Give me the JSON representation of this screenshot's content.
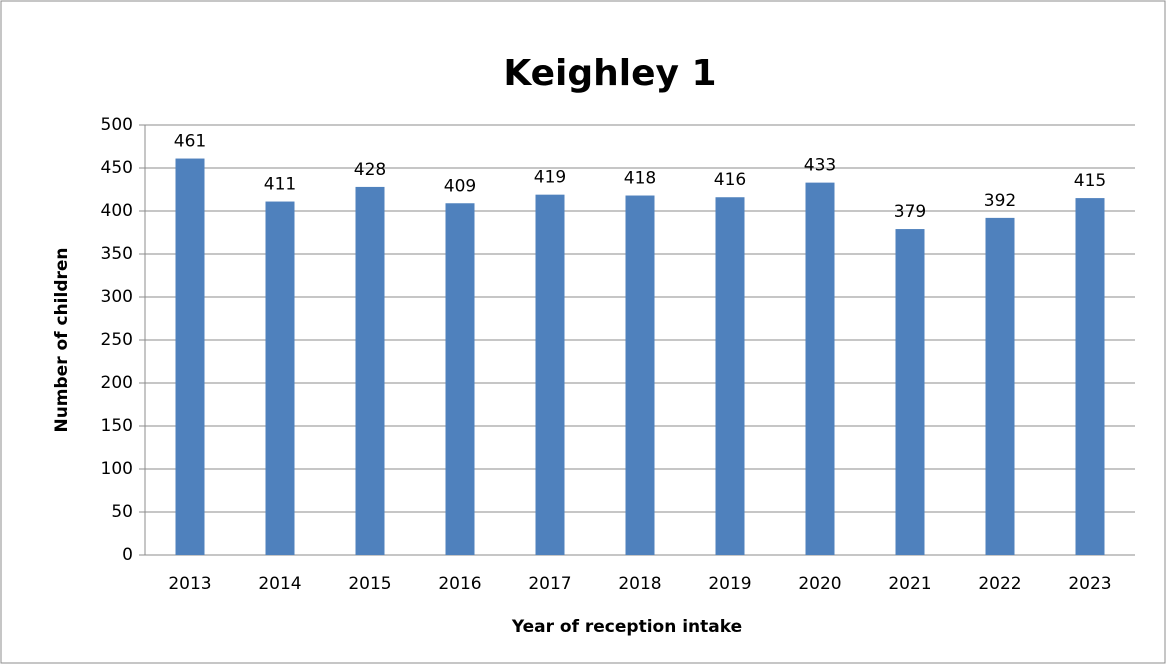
{
  "chart_data": {
    "type": "bar",
    "title": "Keighley 1",
    "x_label": "Year of reception intake",
    "y_label": "Number of children",
    "categories": [
      "2013",
      "2014",
      "2015",
      "2016",
      "2017",
      "2018",
      "2019",
      "2020",
      "2021",
      "2022",
      "2023"
    ],
    "values": [
      461,
      411,
      428,
      409,
      419,
      418,
      416,
      433,
      379,
      392,
      415
    ],
    "color": "#4f81bd",
    "ylim": [
      0,
      500
    ],
    "yticks": [
      0,
      50,
      100,
      150,
      200,
      250,
      300,
      350,
      400,
      450,
      500
    ],
    "grid": true
  }
}
